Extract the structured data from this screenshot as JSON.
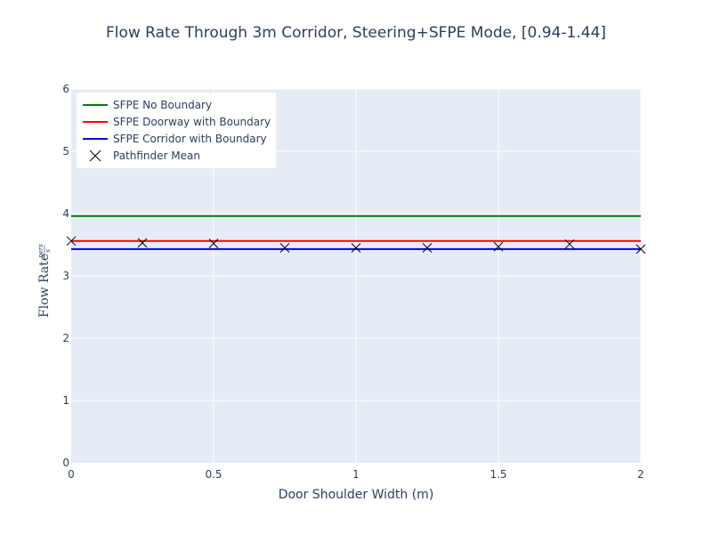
{
  "chart_data": {
    "type": "line",
    "title": "Flow Rate Through 3m Corridor, Steering+SFPE Mode, [0.94-1.44]",
    "xlabel": "Door Shoulder Width (m)",
    "ylabel": {
      "prefix": "Flow Rate",
      "numerator": "pers",
      "denominator": "s"
    },
    "xlim": [
      0,
      2
    ],
    "ylim": [
      0,
      6
    ],
    "x_ticks": [
      0,
      0.5,
      1,
      1.5,
      2
    ],
    "x_tick_labels": [
      "0",
      "0.5",
      "1",
      "1.5",
      "2"
    ],
    "y_ticks": [
      0,
      1,
      2,
      3,
      4,
      5,
      6
    ],
    "y_tick_labels": [
      "0",
      "1",
      "2",
      "3",
      "4",
      "5",
      "6"
    ],
    "grid": true,
    "legend_position": "top-left",
    "series": [
      {
        "name": "SFPE No Boundary",
        "type": "line",
        "color": "#008000",
        "x": [
          0,
          2
        ],
        "y": [
          3.96,
          3.96
        ]
      },
      {
        "name": "SFPE Doorway with Boundary",
        "type": "line",
        "color": "#ff0000",
        "x": [
          0,
          2
        ],
        "y": [
          3.56,
          3.56
        ]
      },
      {
        "name": "SFPE Corridor with Boundary",
        "type": "line",
        "color": "#0000ff",
        "x": [
          0,
          2
        ],
        "y": [
          3.43,
          3.43
        ]
      },
      {
        "name": "Pathfinder Mean",
        "type": "scatter",
        "marker": "x",
        "color": "#000000",
        "x": [
          0,
          0.25,
          0.5,
          0.75,
          1,
          1.25,
          1.5,
          1.75,
          2
        ],
        "y": [
          3.56,
          3.53,
          3.52,
          3.45,
          3.45,
          3.45,
          3.47,
          3.51,
          3.43
        ]
      }
    ]
  }
}
